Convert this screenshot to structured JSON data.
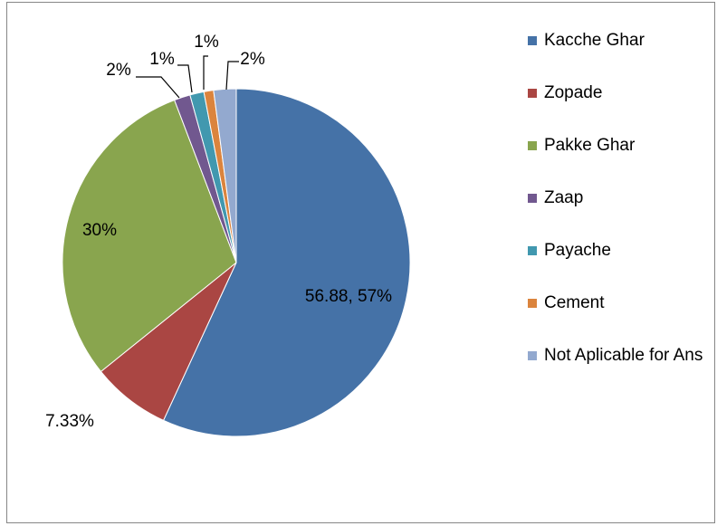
{
  "chart_data": {
    "type": "pie",
    "categories": [
      "Kacche Ghar",
      "Zopade",
      "Pakke Ghar",
      "Zaap",
      "Payache",
      "Cement",
      "Not Aplicable for Ans"
    ],
    "values": [
      56.88,
      7.33,
      30,
      1.5,
      1.3,
      0.9,
      2.09
    ],
    "value_labels": [
      "56.88, 57%",
      "7.33%",
      "30%",
      "2%",
      "1%",
      "1%",
      "2%"
    ],
    "colors": [
      "#4572a7",
      "#aa4643",
      "#89a54e",
      "#71588f",
      "#4198af",
      "#db843d",
      "#93a9cf"
    ],
    "legend": "right"
  }
}
